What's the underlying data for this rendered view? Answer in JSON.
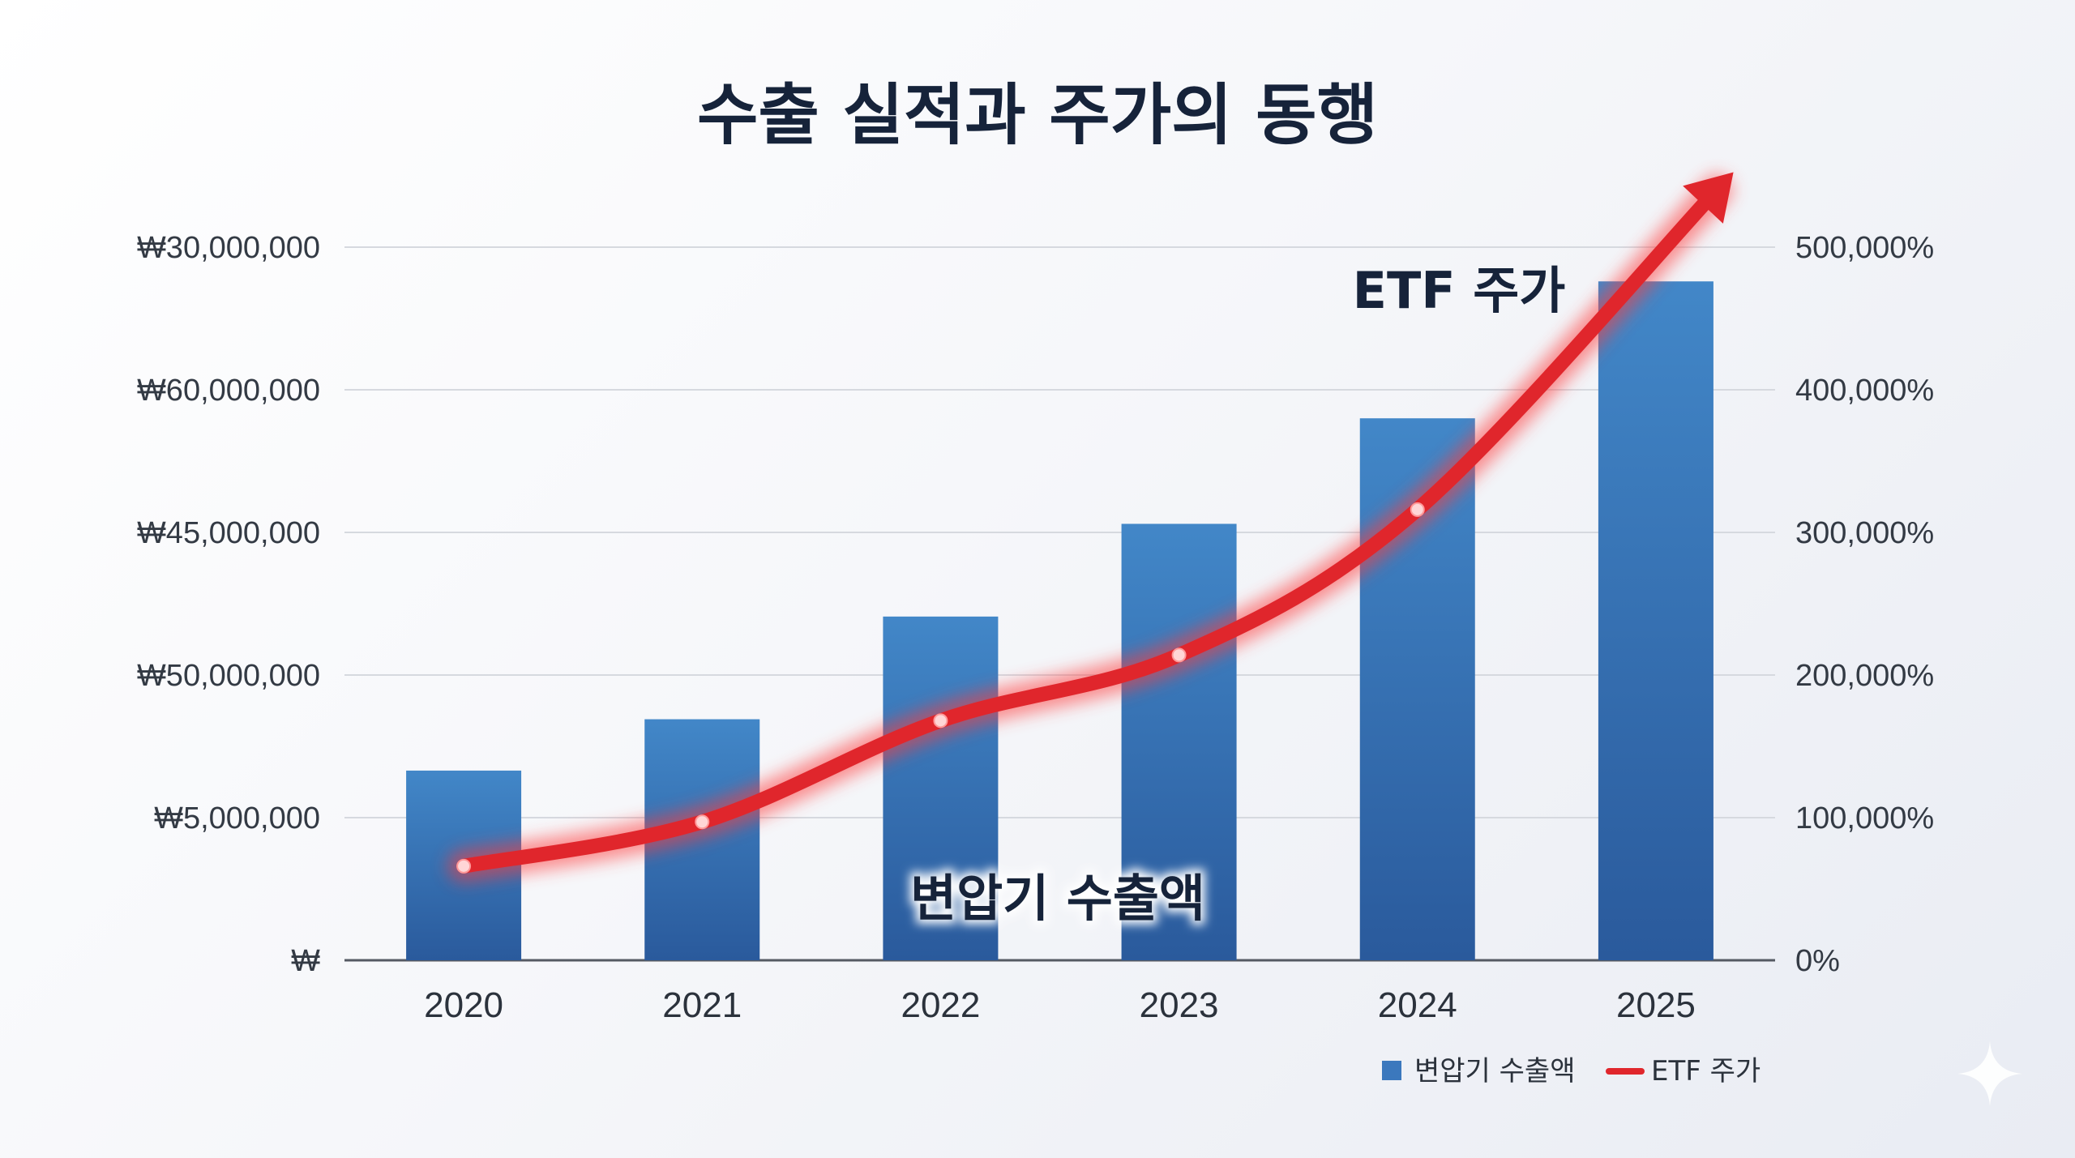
{
  "chart_data": {
    "type": "bar",
    "title": "수출 실적과 주가의 동행",
    "categories": [
      "2020",
      "2021",
      "2022",
      "2023",
      "2024",
      "2025"
    ],
    "y_left_ticks": [
      "₩",
      "₩5,000,000",
      "₩50,000,000",
      "₩45,000,000",
      "₩60,000,000",
      "₩30,000,000"
    ],
    "y_right_ticks": [
      "0%",
      "100,000%",
      "200,000%",
      "300,000%",
      "400,000%",
      "500,000%"
    ],
    "y_right_range": [
      0,
      500000
    ],
    "grid": true,
    "series": [
      {
        "name": "변압기 수출액",
        "kind": "bar",
        "values_on_right_scale": [
          133000,
          169000,
          241000,
          306000,
          380000,
          476000
        ]
      },
      {
        "name": "ETF 주가",
        "kind": "line",
        "values": [
          66000,
          97000,
          168000,
          214000,
          316000,
          540000
        ]
      }
    ],
    "annotations": {
      "bar_label": "변압기 수출액",
      "line_label": "ETF 주가"
    },
    "legend": {
      "position": "bottom-right",
      "items": [
        "변압기 수출액",
        "ETF 주가"
      ]
    },
    "colors": {
      "bar_top": "#4287c8",
      "bar_bottom": "#2a5a9c",
      "line": "#e0262c",
      "title": "#16233a"
    }
  }
}
